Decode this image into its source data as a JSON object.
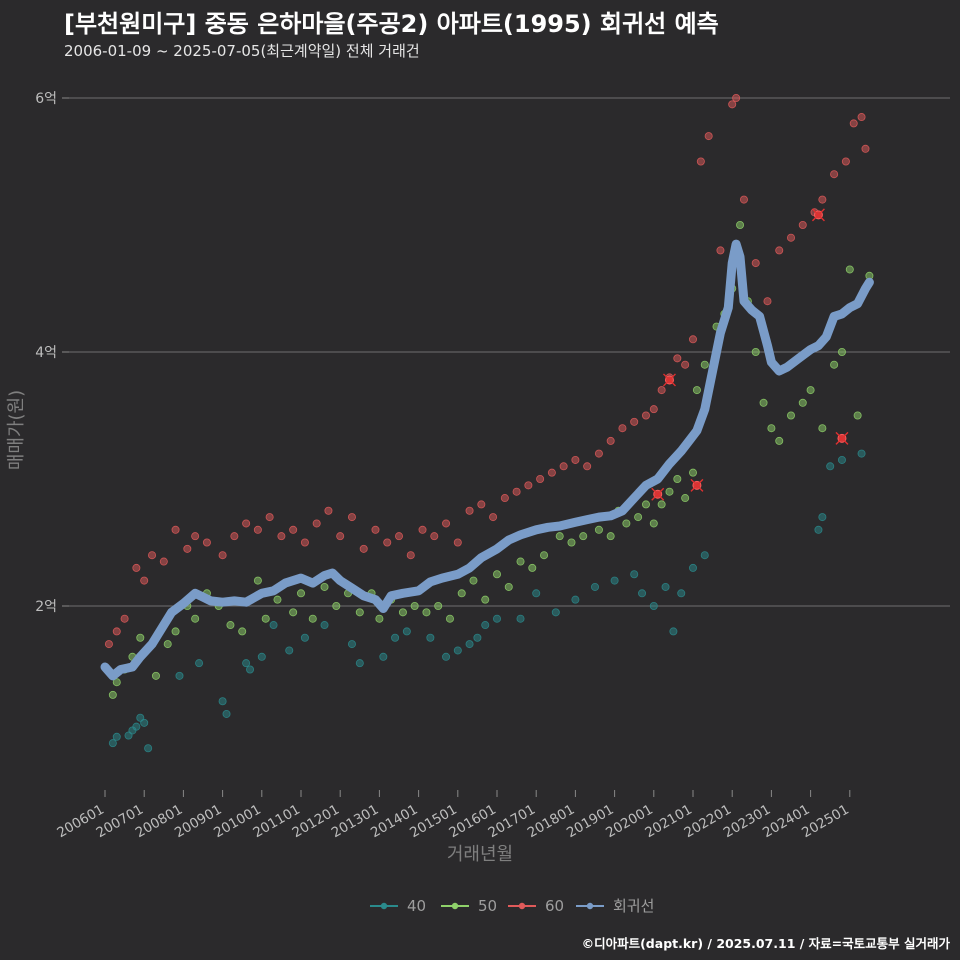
{
  "header": {
    "title": "[부천원미구] 중동 은하마을(주공2) 아파트(1995) 회귀선 예측",
    "subtitle": "2006-01-09 ~ 2025-07-05(최근계약일) 전체 거래건"
  },
  "footer": {
    "credit": "©디아파트(dapt.kr) / 2025.07.11 / 자료=국토교통부 실거래가"
  },
  "chart_data": {
    "type": "scatter",
    "title": "[부천원미구] 중동 은하마을(주공2) 아파트(1995) 회귀선 예측",
    "xlabel": "거래년월",
    "ylabel": "매매가(원)",
    "xlim": [
      2006.0,
      2025.6
    ],
    "ylim": [
      0.85,
      6.0
    ],
    "y_unit": "억",
    "y_ticks": [
      {
        "value": 2,
        "label": "2억"
      },
      {
        "value": 4,
        "label": "4억"
      },
      {
        "value": 6,
        "label": "6억"
      }
    ],
    "x_ticks": [
      {
        "value": 2006.0,
        "label": "200601"
      },
      {
        "value": 2007.0,
        "label": "200701"
      },
      {
        "value": 2008.0,
        "label": "200801"
      },
      {
        "value": 2009.0,
        "label": "200901"
      },
      {
        "value": 2010.0,
        "label": "201001"
      },
      {
        "value": 2011.0,
        "label": "201101"
      },
      {
        "value": 2012.0,
        "label": "201201"
      },
      {
        "value": 2013.0,
        "label": "201301"
      },
      {
        "value": 2014.0,
        "label": "201401"
      },
      {
        "value": 2015.0,
        "label": "201501"
      },
      {
        "value": 2016.0,
        "label": "201601"
      },
      {
        "value": 2017.0,
        "label": "201701"
      },
      {
        "value": 2018.0,
        "label": "201801"
      },
      {
        "value": 2019.0,
        "label": "201901"
      },
      {
        "value": 2020.0,
        "label": "202001"
      },
      {
        "value": 2021.0,
        "label": "202101"
      },
      {
        "value": 2022.0,
        "label": "202201"
      },
      {
        "value": 2023.0,
        "label": "202301"
      },
      {
        "value": 2024.0,
        "label": "202401"
      },
      {
        "value": 2025.0,
        "label": "202501"
      }
    ],
    "legend": [
      {
        "name": "40",
        "color": "#2a8a8c"
      },
      {
        "name": "50",
        "color": "#8fd16a"
      },
      {
        "name": "60",
        "color": "#e05a5a"
      },
      {
        "name": "회귀선",
        "color": "#7a9cc8"
      }
    ],
    "series": [
      {
        "name": "40",
        "color": "#2a8a8c",
        "points": [
          [
            2006.2,
            0.92
          ],
          [
            2006.3,
            0.97
          ],
          [
            2006.6,
            0.98
          ],
          [
            2006.7,
            1.02
          ],
          [
            2006.8,
            1.05
          ],
          [
            2006.9,
            1.12
          ],
          [
            2007.0,
            1.08
          ],
          [
            2007.1,
            0.88
          ],
          [
            2007.9,
            1.45
          ],
          [
            2008.4,
            1.55
          ],
          [
            2009.0,
            1.25
          ],
          [
            2009.1,
            1.15
          ],
          [
            2009.6,
            1.55
          ],
          [
            2009.7,
            1.5
          ],
          [
            2010.0,
            1.6
          ],
          [
            2010.3,
            1.85
          ],
          [
            2010.7,
            1.65
          ],
          [
            2011.1,
            1.75
          ],
          [
            2011.6,
            1.85
          ],
          [
            2012.3,
            1.7
          ],
          [
            2012.5,
            1.55
          ],
          [
            2013.1,
            1.6
          ],
          [
            2013.4,
            1.75
          ],
          [
            2013.7,
            1.8
          ],
          [
            2014.3,
            1.75
          ],
          [
            2014.7,
            1.6
          ],
          [
            2015.0,
            1.65
          ],
          [
            2015.3,
            1.7
          ],
          [
            2015.5,
            1.75
          ],
          [
            2015.7,
            1.85
          ],
          [
            2016.0,
            1.9
          ],
          [
            2016.6,
            1.9
          ],
          [
            2017.0,
            2.1
          ],
          [
            2017.5,
            1.95
          ],
          [
            2018.0,
            2.05
          ],
          [
            2018.5,
            2.15
          ],
          [
            2019.0,
            2.2
          ],
          [
            2019.5,
            2.25
          ],
          [
            2019.7,
            2.1
          ],
          [
            2020.0,
            2.0
          ],
          [
            2020.3,
            2.15
          ],
          [
            2020.5,
            1.8
          ],
          [
            2020.7,
            2.1
          ],
          [
            2021.0,
            2.3
          ],
          [
            2021.3,
            2.4
          ],
          [
            2024.2,
            2.6
          ],
          [
            2024.3,
            2.7
          ],
          [
            2024.5,
            3.1
          ],
          [
            2024.8,
            3.15
          ],
          [
            2025.3,
            3.2
          ]
        ]
      },
      {
        "name": "50",
        "color": "#8fd16a",
        "points": [
          [
            2006.2,
            1.3
          ],
          [
            2006.3,
            1.4
          ],
          [
            2006.5,
            1.5
          ],
          [
            2006.7,
            1.6
          ],
          [
            2006.9,
            1.75
          ],
          [
            2007.3,
            1.45
          ],
          [
            2007.6,
            1.7
          ],
          [
            2007.8,
            1.8
          ],
          [
            2008.1,
            2.0
          ],
          [
            2008.3,
            1.9
          ],
          [
            2008.6,
            2.1
          ],
          [
            2008.9,
            2.0
          ],
          [
            2009.2,
            1.85
          ],
          [
            2009.5,
            1.8
          ],
          [
            2009.7,
            2.05
          ],
          [
            2009.9,
            2.2
          ],
          [
            2010.1,
            1.9
          ],
          [
            2010.4,
            2.05
          ],
          [
            2010.8,
            1.95
          ],
          [
            2011.0,
            2.1
          ],
          [
            2011.3,
            1.9
          ],
          [
            2011.6,
            2.15
          ],
          [
            2011.9,
            2.0
          ],
          [
            2012.2,
            2.1
          ],
          [
            2012.5,
            1.95
          ],
          [
            2012.8,
            2.1
          ],
          [
            2013.0,
            1.9
          ],
          [
            2013.3,
            2.05
          ],
          [
            2013.6,
            1.95
          ],
          [
            2013.9,
            2.0
          ],
          [
            2014.2,
            1.95
          ],
          [
            2014.5,
            2.0
          ],
          [
            2014.8,
            1.9
          ],
          [
            2015.1,
            2.1
          ],
          [
            2015.4,
            2.2
          ],
          [
            2015.7,
            2.05
          ],
          [
            2016.0,
            2.25
          ],
          [
            2016.3,
            2.15
          ],
          [
            2016.6,
            2.35
          ],
          [
            2016.9,
            2.3
          ],
          [
            2017.2,
            2.4
          ],
          [
            2017.6,
            2.55
          ],
          [
            2017.9,
            2.5
          ],
          [
            2018.2,
            2.55
          ],
          [
            2018.6,
            2.6
          ],
          [
            2018.9,
            2.55
          ],
          [
            2019.1,
            2.75
          ],
          [
            2019.3,
            2.65
          ],
          [
            2019.6,
            2.7
          ],
          [
            2019.8,
            2.8
          ],
          [
            2020.0,
            2.65
          ],
          [
            2020.2,
            2.8
          ],
          [
            2020.4,
            2.9
          ],
          [
            2020.6,
            3.0
          ],
          [
            2020.8,
            2.85
          ],
          [
            2021.0,
            3.05
          ],
          [
            2021.1,
            3.7
          ],
          [
            2021.3,
            3.9
          ],
          [
            2021.6,
            4.2
          ],
          [
            2021.8,
            4.3
          ],
          [
            2022.0,
            4.5
          ],
          [
            2022.2,
            5.0
          ],
          [
            2022.4,
            4.4
          ],
          [
            2022.6,
            4.0
          ],
          [
            2022.8,
            3.6
          ],
          [
            2023.0,
            3.4
          ],
          [
            2023.2,
            3.3
          ],
          [
            2023.5,
            3.5
          ],
          [
            2023.8,
            3.6
          ],
          [
            2024.0,
            3.7
          ],
          [
            2024.3,
            3.4
          ],
          [
            2024.6,
            3.9
          ],
          [
            2024.8,
            4.0
          ],
          [
            2025.0,
            4.65
          ],
          [
            2025.2,
            3.5
          ],
          [
            2025.5,
            4.6
          ]
        ]
      },
      {
        "name": "60",
        "color": "#e05a5a",
        "points": [
          [
            2006.1,
            1.7
          ],
          [
            2006.3,
            1.8
          ],
          [
            2006.5,
            1.9
          ],
          [
            2006.8,
            2.3
          ],
          [
            2007.0,
            2.2
          ],
          [
            2007.2,
            2.4
          ],
          [
            2007.5,
            2.35
          ],
          [
            2007.8,
            2.6
          ],
          [
            2008.1,
            2.45
          ],
          [
            2008.3,
            2.55
          ],
          [
            2008.6,
            2.5
          ],
          [
            2009.0,
            2.4
          ],
          [
            2009.3,
            2.55
          ],
          [
            2009.6,
            2.65
          ],
          [
            2009.9,
            2.6
          ],
          [
            2010.2,
            2.7
          ],
          [
            2010.5,
            2.55
          ],
          [
            2010.8,
            2.6
          ],
          [
            2011.1,
            2.5
          ],
          [
            2011.4,
            2.65
          ],
          [
            2011.7,
            2.75
          ],
          [
            2012.0,
            2.55
          ],
          [
            2012.3,
            2.7
          ],
          [
            2012.6,
            2.45
          ],
          [
            2012.9,
            2.6
          ],
          [
            2013.2,
            2.5
          ],
          [
            2013.5,
            2.55
          ],
          [
            2013.8,
            2.4
          ],
          [
            2014.1,
            2.6
          ],
          [
            2014.4,
            2.55
          ],
          [
            2014.7,
            2.65
          ],
          [
            2015.0,
            2.5
          ],
          [
            2015.3,
            2.75
          ],
          [
            2015.6,
            2.8
          ],
          [
            2015.9,
            2.7
          ],
          [
            2016.2,
            2.85
          ],
          [
            2016.5,
            2.9
          ],
          [
            2016.8,
            2.95
          ],
          [
            2017.1,
            3.0
          ],
          [
            2017.4,
            3.05
          ],
          [
            2017.7,
            3.1
          ],
          [
            2018.0,
            3.15
          ],
          [
            2018.3,
            3.1
          ],
          [
            2018.6,
            3.2
          ],
          [
            2018.9,
            3.3
          ],
          [
            2019.2,
            3.4
          ],
          [
            2019.5,
            3.45
          ],
          [
            2019.8,
            3.5
          ],
          [
            2020.0,
            3.55
          ],
          [
            2020.2,
            3.7
          ],
          [
            2020.4,
            3.8
          ],
          [
            2020.6,
            3.95
          ],
          [
            2020.8,
            3.9
          ],
          [
            2021.0,
            4.1
          ],
          [
            2021.2,
            5.5
          ],
          [
            2021.4,
            5.7
          ],
          [
            2021.7,
            4.8
          ],
          [
            2022.0,
            5.95
          ],
          [
            2022.1,
            6.0
          ],
          [
            2022.3,
            5.2
          ],
          [
            2022.6,
            4.7
          ],
          [
            2022.9,
            4.4
          ],
          [
            2023.2,
            4.8
          ],
          [
            2023.5,
            4.9
          ],
          [
            2023.8,
            5.0
          ],
          [
            2024.1,
            5.1
          ],
          [
            2024.3,
            5.2
          ],
          [
            2024.6,
            5.4
          ],
          [
            2024.9,
            5.5
          ],
          [
            2025.1,
            5.8
          ],
          [
            2025.3,
            5.85
          ],
          [
            2025.4,
            5.6
          ]
        ]
      }
    ],
    "regression": {
      "name": "회귀선",
      "color": "#7a9cc8",
      "points": [
        [
          2006.0,
          1.52
        ],
        [
          2006.2,
          1.45
        ],
        [
          2006.4,
          1.5
        ],
        [
          2006.7,
          1.52
        ],
        [
          2006.9,
          1.6
        ],
        [
          2007.2,
          1.7
        ],
        [
          2007.5,
          1.85
        ],
        [
          2007.7,
          1.95
        ],
        [
          2008.0,
          2.02
        ],
        [
          2008.3,
          2.1
        ],
        [
          2008.5,
          2.07
        ],
        [
          2008.7,
          2.04
        ],
        [
          2009.0,
          2.03
        ],
        [
          2009.3,
          2.04
        ],
        [
          2009.6,
          2.03
        ],
        [
          2010.0,
          2.1
        ],
        [
          2010.3,
          2.12
        ],
        [
          2010.6,
          2.18
        ],
        [
          2011.0,
          2.22
        ],
        [
          2011.3,
          2.18
        ],
        [
          2011.6,
          2.24
        ],
        [
          2011.8,
          2.26
        ],
        [
          2012.0,
          2.2
        ],
        [
          2012.3,
          2.14
        ],
        [
          2012.6,
          2.08
        ],
        [
          2012.9,
          2.05
        ],
        [
          2013.1,
          1.98
        ],
        [
          2013.3,
          2.08
        ],
        [
          2013.6,
          2.1
        ],
        [
          2014.0,
          2.12
        ],
        [
          2014.3,
          2.19
        ],
        [
          2014.6,
          2.22
        ],
        [
          2015.0,
          2.25
        ],
        [
          2015.3,
          2.3
        ],
        [
          2015.6,
          2.38
        ],
        [
          2016.0,
          2.45
        ],
        [
          2016.3,
          2.52
        ],
        [
          2016.6,
          2.56
        ],
        [
          2017.0,
          2.6
        ],
        [
          2017.3,
          2.62
        ],
        [
          2017.6,
          2.63
        ],
        [
          2018.0,
          2.66
        ],
        [
          2018.3,
          2.68
        ],
        [
          2018.6,
          2.7
        ],
        [
          2018.9,
          2.71
        ],
        [
          2019.2,
          2.75
        ],
        [
          2019.5,
          2.85
        ],
        [
          2019.8,
          2.95
        ],
        [
          2020.1,
          3.0
        ],
        [
          2020.4,
          3.12
        ],
        [
          2020.7,
          3.22
        ],
        [
          2020.9,
          3.3
        ],
        [
          2021.1,
          3.38
        ],
        [
          2021.3,
          3.55
        ],
        [
          2021.5,
          3.85
        ],
        [
          2021.7,
          4.15
        ],
        [
          2021.9,
          4.35
        ],
        [
          2022.0,
          4.7
        ],
        [
          2022.1,
          4.85
        ],
        [
          2022.2,
          4.75
        ],
        [
          2022.3,
          4.4
        ],
        [
          2022.5,
          4.33
        ],
        [
          2022.7,
          4.28
        ],
        [
          2022.9,
          4.05
        ],
        [
          2023.0,
          3.92
        ],
        [
          2023.2,
          3.85
        ],
        [
          2023.4,
          3.88
        ],
        [
          2023.7,
          3.95
        ],
        [
          2024.0,
          4.02
        ],
        [
          2024.2,
          4.05
        ],
        [
          2024.4,
          4.12
        ],
        [
          2024.6,
          4.28
        ],
        [
          2024.8,
          4.3
        ],
        [
          2025.0,
          4.35
        ],
        [
          2025.2,
          4.38
        ],
        [
          2025.4,
          4.5
        ],
        [
          2025.5,
          4.55
        ]
      ]
    },
    "highlights": [
      [
        2020.1,
        2.88
      ],
      [
        2020.4,
        3.78
      ],
      [
        2021.1,
        2.95
      ],
      [
        2024.2,
        5.08
      ],
      [
        2024.8,
        3.32
      ]
    ]
  }
}
